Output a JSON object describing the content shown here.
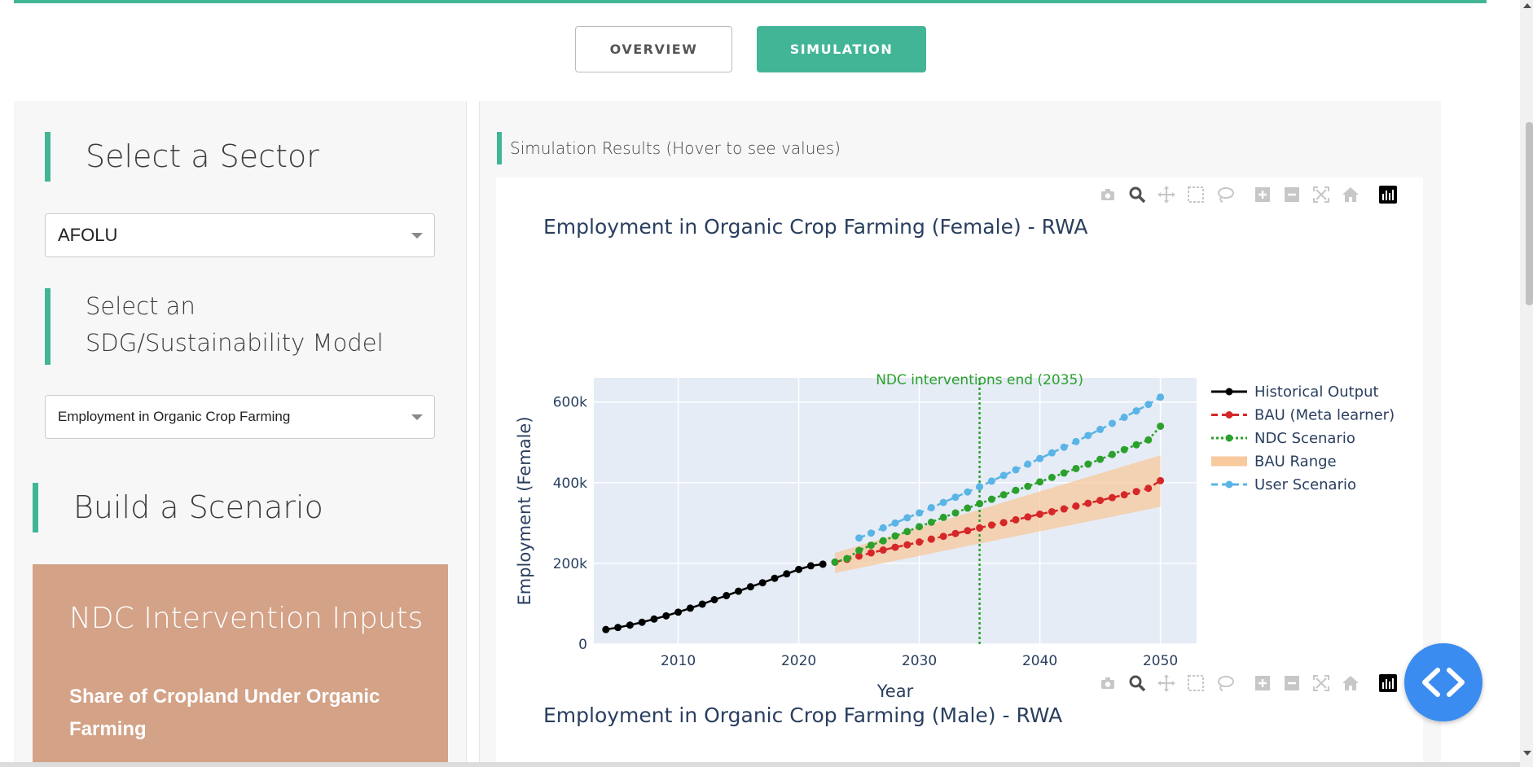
{
  "tabs": [
    {
      "label": "OVERVIEW",
      "active": false
    },
    {
      "label": "SIMULATION",
      "active": true
    }
  ],
  "left": {
    "sector_heading": "Select a Sector",
    "sector_value": "AFOLU",
    "model_heading": "Select an SDG/Sustainability Model",
    "model_value": "Employment in Organic Crop Farming",
    "build_heading": "Build a Scenario",
    "ndc_title": "NDC Intervention Inputs",
    "ndc_input_label": "Share of Cropland Under Organic Farming"
  },
  "results": {
    "heading": "Simulation Results (Hover to see values)"
  },
  "modebar_icons": [
    "camera-icon",
    "zoom-icon",
    "pan-icon",
    "box-select-icon",
    "lasso-select-icon",
    "zoom-in-icon",
    "zoom-out-icon",
    "autoscale-icon",
    "reset-axes-icon",
    "plotly-logo-icon"
  ],
  "colors": {
    "accent": "#43b597",
    "ndc_box": "#d3a287",
    "plot_bg": "#e5ecf6",
    "historical": "#000000",
    "bau": "#d62728",
    "ndc": "#2ca02c",
    "bau_range": "#f7c99d",
    "user": "#5ab4e5",
    "fab": "#3b8cf0"
  },
  "chart_data": [
    {
      "type": "line",
      "title": "Employment in Organic Crop Farming (Female) - RWA",
      "xlabel": "Year",
      "ylabel": "Employment (Female)",
      "xlim": [
        2003,
        2053
      ],
      "ylim": [
        0,
        660000
      ],
      "xticks": [
        2010,
        2020,
        2030,
        2040,
        2050
      ],
      "yticks": [
        0,
        200000,
        400000,
        600000
      ],
      "ytick_labels": [
        "0",
        "200k",
        "400k",
        "600k"
      ],
      "grid": true,
      "legend_position": "right",
      "annotation": {
        "text": "NDC interventions end (2035)",
        "x": 2035
      },
      "series": [
        {
          "name": "Historical Output",
          "style": "solid",
          "x": [
            2004,
            2005,
            2006,
            2007,
            2008,
            2009,
            2010,
            2011,
            2012,
            2013,
            2014,
            2015,
            2016,
            2017,
            2018,
            2019,
            2020,
            2021,
            2022
          ],
          "y": [
            36000,
            41000,
            47000,
            54000,
            62000,
            70000,
            79000,
            89000,
            99000,
            110000,
            120000,
            131000,
            142000,
            152000,
            163000,
            174000,
            185000,
            194000,
            198000
          ]
        },
        {
          "name": "BAU (Meta learner)",
          "style": "dashed",
          "x": [
            2023,
            2024,
            2025,
            2026,
            2027,
            2028,
            2029,
            2030,
            2031,
            2032,
            2033,
            2034,
            2035,
            2036,
            2037,
            2038,
            2039,
            2040,
            2041,
            2042,
            2043,
            2044,
            2045,
            2046,
            2047,
            2048,
            2049,
            2050
          ],
          "y": [
            203000,
            210000,
            218000,
            226000,
            233000,
            240000,
            246000,
            253000,
            260000,
            267000,
            274000,
            281000,
            288000,
            295000,
            301000,
            308000,
            315000,
            322000,
            328000,
            335000,
            342000,
            349000,
            356000,
            363000,
            370000,
            378000,
            386000,
            405000
          ]
        },
        {
          "name": "NDC Scenario",
          "style": "dotted",
          "x": [
            2023,
            2024,
            2025,
            2026,
            2027,
            2028,
            2029,
            2030,
            2031,
            2032,
            2033,
            2034,
            2035,
            2036,
            2037,
            2038,
            2039,
            2040,
            2041,
            2042,
            2043,
            2044,
            2045,
            2046,
            2047,
            2048,
            2049,
            2050
          ],
          "y": [
            203000,
            212000,
            232000,
            245000,
            256000,
            268000,
            279000,
            291000,
            302000,
            314000,
            325000,
            337000,
            348000,
            359000,
            370000,
            381000,
            391000,
            402000,
            413000,
            424000,
            435000,
            446000,
            458000,
            470000,
            482000,
            494000,
            506000,
            540000
          ]
        },
        {
          "name": "BAU Range",
          "style": "band",
          "x": [
            2023,
            2050
          ],
          "lower": [
            176000,
            340000
          ],
          "upper": [
            226000,
            468000
          ]
        },
        {
          "name": "User Scenario",
          "style": "dashed",
          "x": [
            2025,
            2026,
            2027,
            2028,
            2029,
            2030,
            2031,
            2032,
            2033,
            2034,
            2035,
            2036,
            2037,
            2038,
            2039,
            2040,
            2041,
            2042,
            2043,
            2044,
            2045,
            2046,
            2047,
            2048,
            2049,
            2050
          ],
          "y": [
            263000,
            275000,
            288000,
            300000,
            313000,
            325000,
            338000,
            351000,
            364000,
            377000,
            390000,
            404000,
            418000,
            432000,
            446000,
            460000,
            474000,
            488000,
            502000,
            517000,
            532000,
            547000,
            562000,
            578000,
            594000,
            612000
          ]
        }
      ]
    },
    {
      "type": "line",
      "title": "Employment in Organic Crop Farming (Male) - RWA"
    }
  ]
}
